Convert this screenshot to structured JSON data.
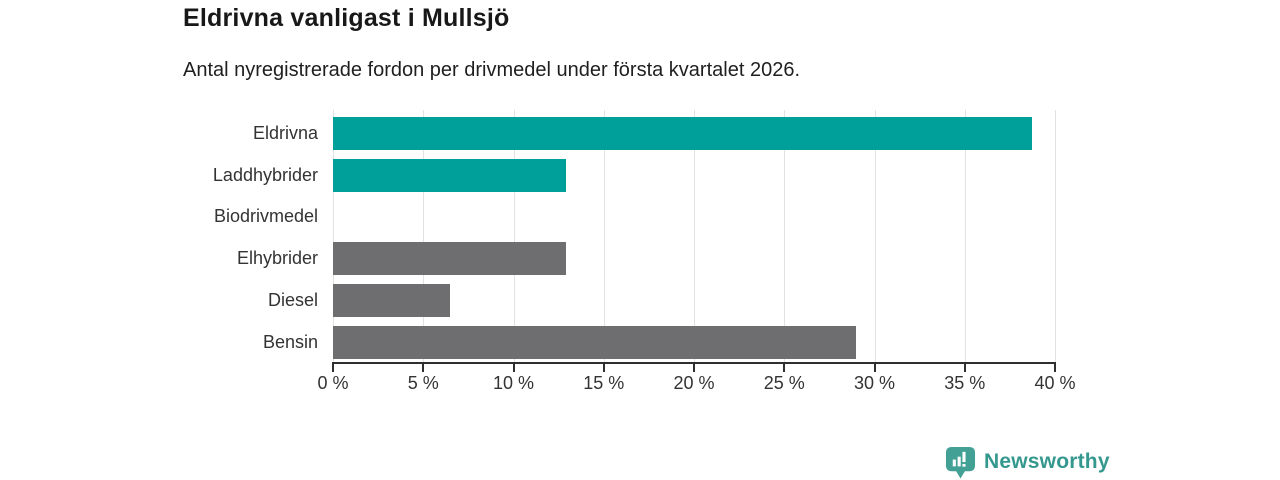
{
  "header": {
    "title": "Eldrivna vanligast i Mullsjö",
    "subtitle": "Antal nyregistrerade fordon per drivmedel under första kvartalet 2026."
  },
  "chart_data": {
    "type": "bar",
    "orientation": "horizontal",
    "title": "Eldrivna vanligast i Mullsjö",
    "subtitle": "Antal nyregistrerade fordon per drivmedel under första kvartalet 2026.",
    "categories": [
      "Eldrivna",
      "Laddhybrider",
      "Biodrivmedel",
      "Elhybrider",
      "Diesel",
      "Bensin"
    ],
    "values": [
      38.7,
      12.9,
      0,
      12.9,
      6.5,
      29
    ],
    "unit": "%",
    "xlim": [
      0,
      40
    ],
    "x_tick_step": 5,
    "x_tick_labels": [
      "0 %",
      "5 %",
      "10 %",
      "15 %",
      "20 %",
      "25 %",
      "30 %",
      "35 %",
      "40 %"
    ],
    "grid": true,
    "legend": false,
    "bar_colors": [
      "#00a09a",
      "#00a09a",
      "#6e6e71",
      "#6e6e71",
      "#6e6e71",
      "#6e6e71"
    ],
    "highlight_color": "#00a09a",
    "default_color": "#6e6e71",
    "gridline_color": "#e2e2e2",
    "axis_color": "#2f2f2f"
  },
  "footer": {
    "brand": "Newsworthy",
    "brand_color": "#35988e",
    "logo_color": "#42a094",
    "logo_icon": "newsworthy-pin-barchart-icon"
  }
}
